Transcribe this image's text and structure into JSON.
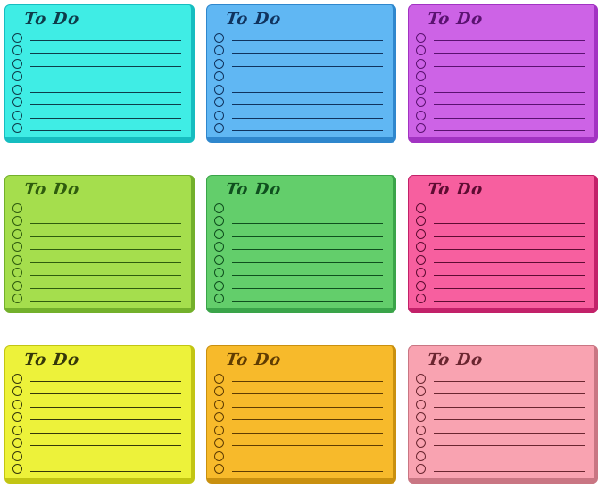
{
  "grid": {
    "rows": 3,
    "cols": 3,
    "background": "#ffffff"
  },
  "notes": [
    {
      "id": "cyan",
      "title": "To Do",
      "colors": {
        "body": "#3FEDE5",
        "edge": "#16BDC0",
        "ink": "#0E3C4A"
      },
      "items": [
        "",
        "",
        "",
        "",
        "",
        "",
        "",
        ""
      ]
    },
    {
      "id": "blue",
      "title": "To Do",
      "colors": {
        "body": "#60B7F3",
        "edge": "#2F87CD",
        "ink": "#10335E"
      },
      "items": [
        "",
        "",
        "",
        "",
        "",
        "",
        "",
        ""
      ]
    },
    {
      "id": "purple",
      "title": "To Do",
      "colors": {
        "body": "#CD63E6",
        "edge": "#A233C2",
        "ink": "#5A1270"
      },
      "items": [
        "",
        "",
        "",
        "",
        "",
        "",
        "",
        ""
      ]
    },
    {
      "id": "lime",
      "title": "To Do",
      "colors": {
        "body": "#A5DE4D",
        "edge": "#73B02B",
        "ink": "#2F5C0E"
      },
      "items": [
        "",
        "",
        "",
        "",
        "",
        "",
        "",
        ""
      ]
    },
    {
      "id": "green",
      "title": "To Do",
      "colors": {
        "body": "#63CE6B",
        "edge": "#3AA449",
        "ink": "#0F4F1E"
      },
      "items": [
        "",
        "",
        "",
        "",
        "",
        "",
        "",
        ""
      ]
    },
    {
      "id": "hot-pink",
      "title": "To Do",
      "colors": {
        "body": "#F75F9F",
        "edge": "#C22169",
        "ink": "#5E0C32"
      },
      "items": [
        "",
        "",
        "",
        "",
        "",
        "",
        "",
        ""
      ]
    },
    {
      "id": "yellow",
      "title": "To Do",
      "colors": {
        "body": "#EDF23A",
        "edge": "#C2C513",
        "ink": "#35370A"
      },
      "items": [
        "",
        "",
        "",
        "",
        "",
        "",
        "",
        ""
      ]
    },
    {
      "id": "amber",
      "title": "To Do",
      "colors": {
        "body": "#F7BA2B",
        "edge": "#C9900F",
        "ink": "#5F3C02"
      },
      "items": [
        "",
        "",
        "",
        "",
        "",
        "",
        "",
        ""
      ]
    },
    {
      "id": "light-pink",
      "title": "To Do",
      "colors": {
        "body": "#F9A3B1",
        "edge": "#C97683",
        "ink": "#6A2630"
      },
      "items": [
        "",
        "",
        "",
        "",
        "",
        "",
        "",
        ""
      ]
    }
  ]
}
